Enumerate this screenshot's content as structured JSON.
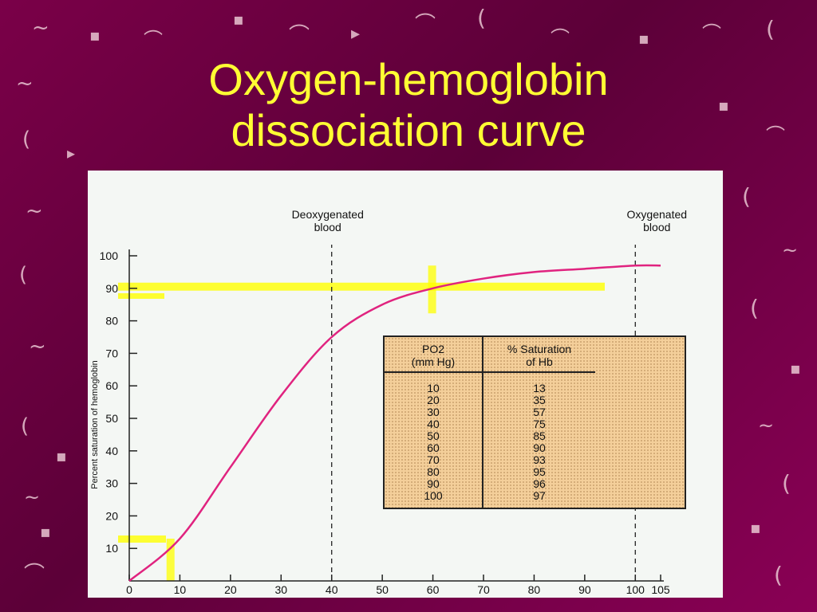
{
  "slide": {
    "title_line1": "Oxygen-hemoglobin",
    "title_line2": "dissociation curve"
  },
  "colors": {
    "background": "#6e0042",
    "title": "#ffff33",
    "curve": "#e0237f",
    "highlight": "#ffff00",
    "table_fill": "#f4cf9a"
  },
  "chart_data": {
    "type": "line",
    "title": "",
    "ylabel": "Percent saturation of hemoglobin",
    "xlabel": "",
    "xlim": [
      0,
      105
    ],
    "ylim": [
      0,
      100
    ],
    "x_ticks": [
      "0",
      "10",
      "20",
      "30",
      "40",
      "50",
      "60",
      "70",
      "80",
      "90",
      "100",
      "105"
    ],
    "y_ticks": [
      "10",
      "20",
      "30",
      "40",
      "50",
      "60",
      "70",
      "80",
      "90",
      "100"
    ],
    "series": [
      {
        "x": [
          0,
          10,
          20,
          30,
          40,
          50,
          60,
          70,
          80,
          90,
          100,
          105
        ],
        "values": [
          0,
          13,
          35,
          57,
          75,
          85,
          90,
          93,
          95,
          96,
          97,
          97
        ]
      }
    ],
    "annotations": [
      {
        "x": 40,
        "label_line1": "Deoxygenated",
        "label_line2": "blood"
      },
      {
        "x": 100,
        "label_line1": "Oxygenated",
        "label_line2": "blood"
      }
    ],
    "grid": false
  },
  "table": {
    "col1_header_line1": "PO2",
    "col1_header_line2": "(mm Hg)",
    "col2_header_line1": "% Saturation",
    "col2_header_line2": "of Hb",
    "rows": [
      [
        "10",
        "13"
      ],
      [
        "20",
        "35"
      ],
      [
        "30",
        "57"
      ],
      [
        "40",
        "75"
      ],
      [
        "50",
        "85"
      ],
      [
        "60",
        "90"
      ],
      [
        "70",
        "93"
      ],
      [
        "80",
        "95"
      ],
      [
        "90",
        "96"
      ],
      [
        "100",
        "97"
      ]
    ]
  }
}
